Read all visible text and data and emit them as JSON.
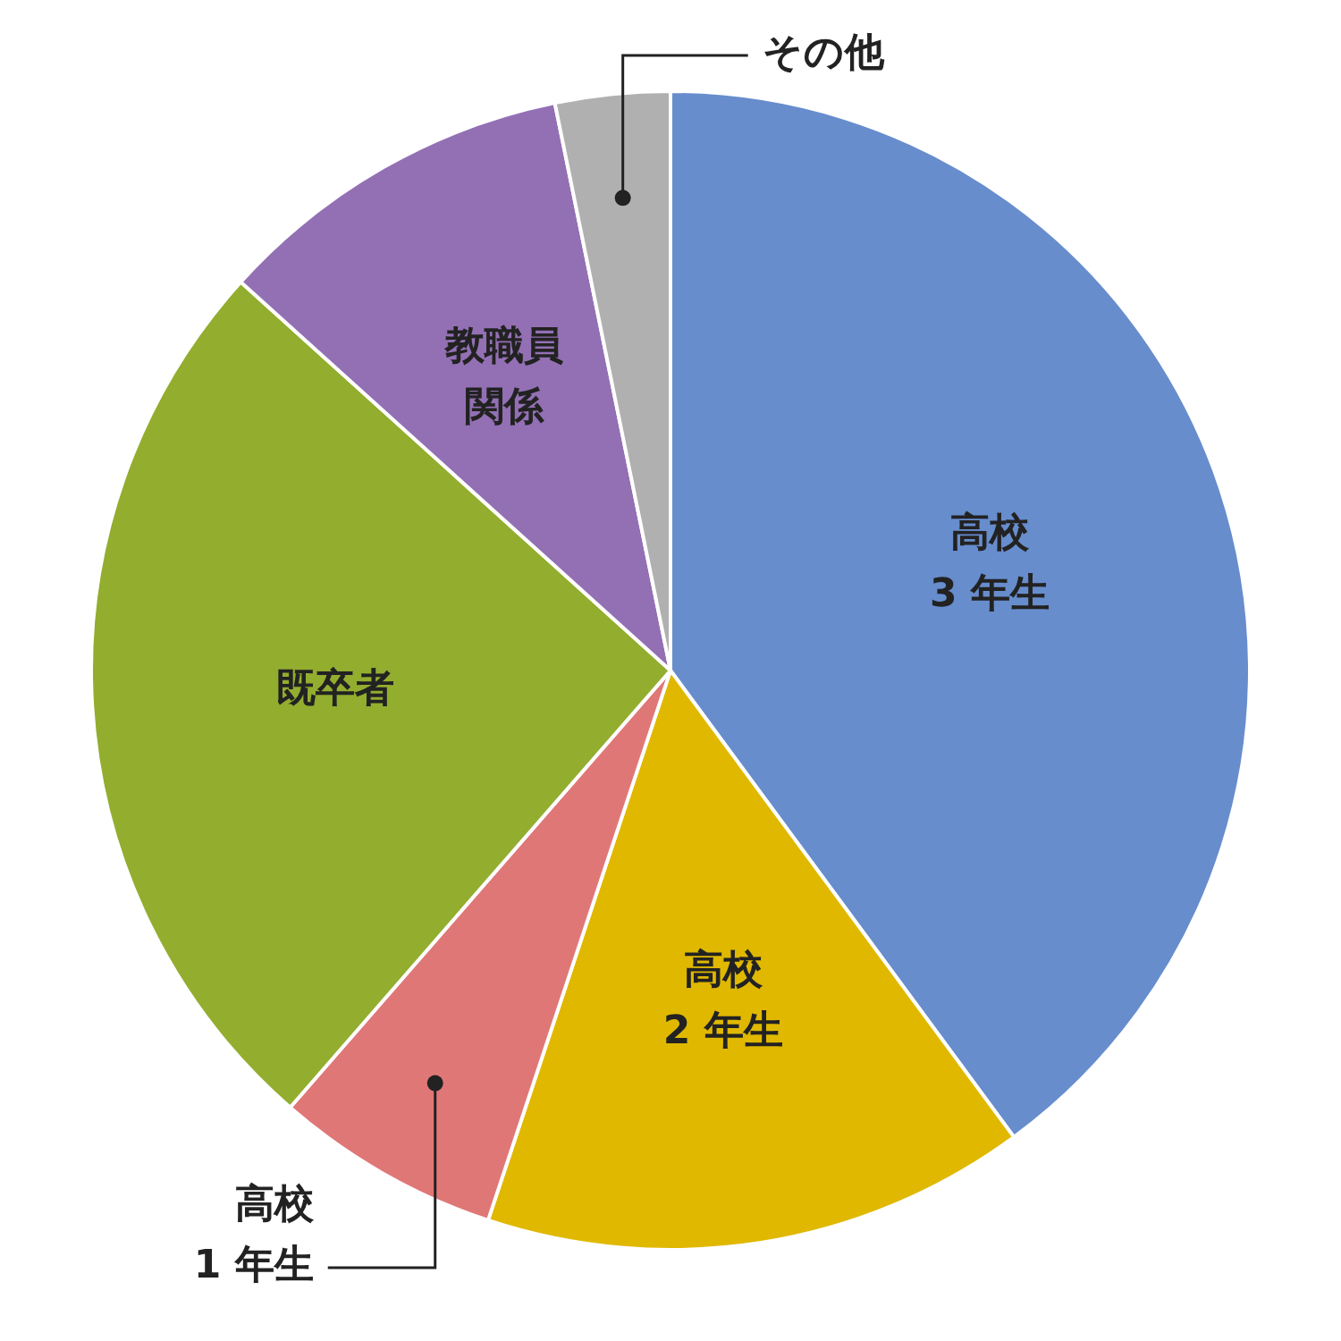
{
  "chart_data": {
    "type": "pie",
    "categories": [
      "高校\n3 年生",
      "高校\n2 年生",
      "高校\n1 年生",
      "既卒者",
      "教職員関係",
      "その他"
    ],
    "values": [
      39.9,
      15.2,
      6.3,
      25.3,
      10.1,
      3.2
    ],
    "colors": [
      "#678dcd",
      "#e0b800",
      "#e07777",
      "#93ad2f",
      "#9370b4",
      "#b0b0b0"
    ],
    "legend": false
  }
}
